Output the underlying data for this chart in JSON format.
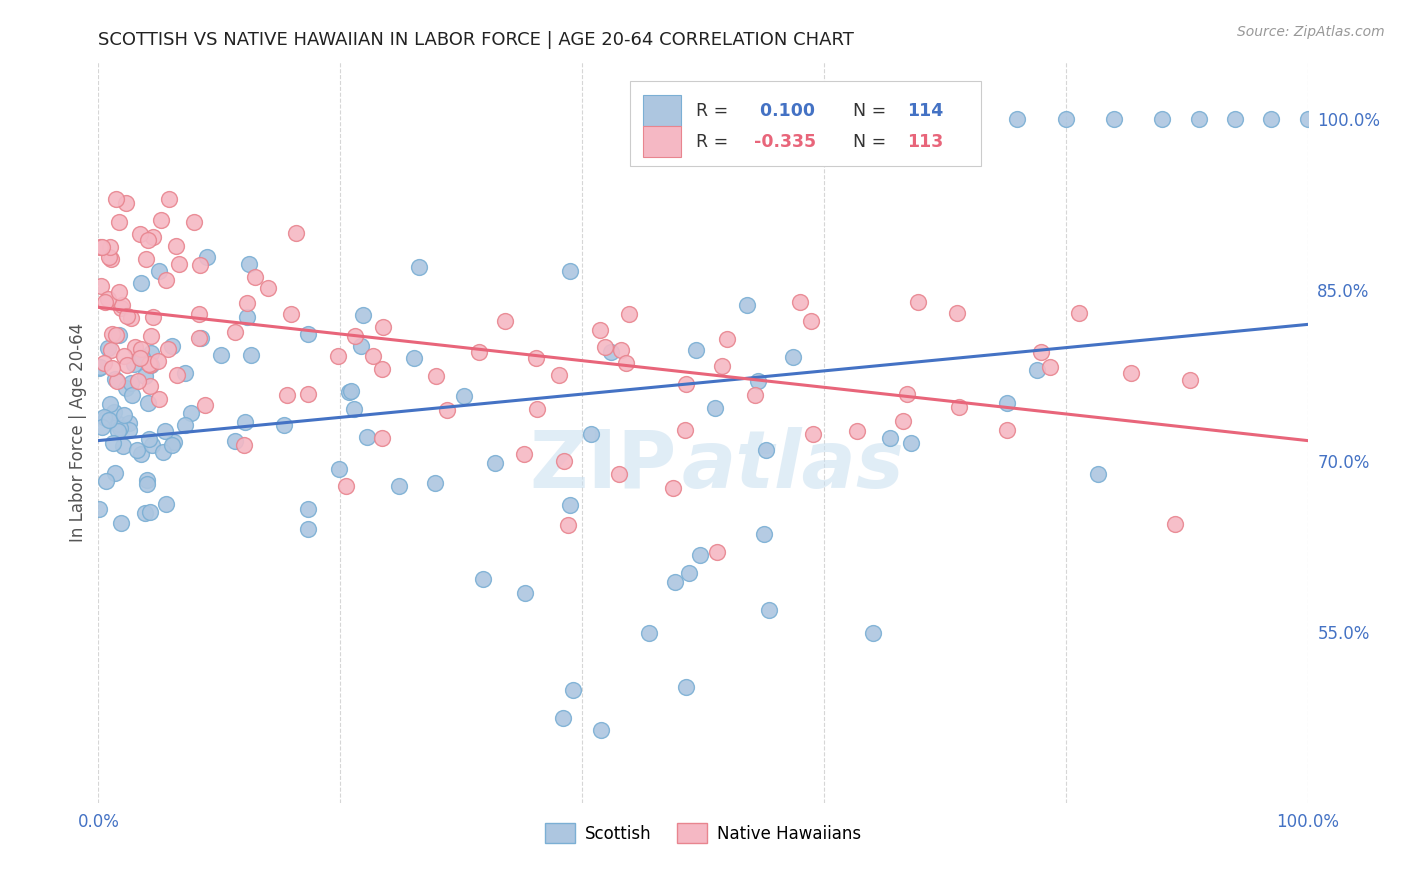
{
  "title": "SCOTTISH VS NATIVE HAWAIIAN IN LABOR FORCE | AGE 20-64 CORRELATION CHART",
  "source": "Source: ZipAtlas.com",
  "ylabel": "In Labor Force | Age 20-64",
  "xlim": [
    0.0,
    1.0
  ],
  "ylim": [
    0.4,
    1.05
  ],
  "y_tick_labels_right": [
    "55.0%",
    "70.0%",
    "85.0%",
    "100.0%"
  ],
  "y_tick_vals_right": [
    0.55,
    0.7,
    0.85,
    1.0
  ],
  "color_scottish": "#adc6e0",
  "color_scottish_edge": "#7bafd4",
  "color_hawaiian": "#f5b8c4",
  "color_hawaiian_edge": "#e8858f",
  "color_line_scottish": "#4472c4",
  "color_line_hawaiian": "#e8657a",
  "color_blue": "#4472c4",
  "color_pink": "#e8657a",
  "background_color": "#ffffff",
  "grid_color": "#cccccc",
  "blue_line_start": 0.718,
  "blue_line_end": 0.82,
  "pink_line_start": 0.835,
  "pink_line_end": 0.718
}
